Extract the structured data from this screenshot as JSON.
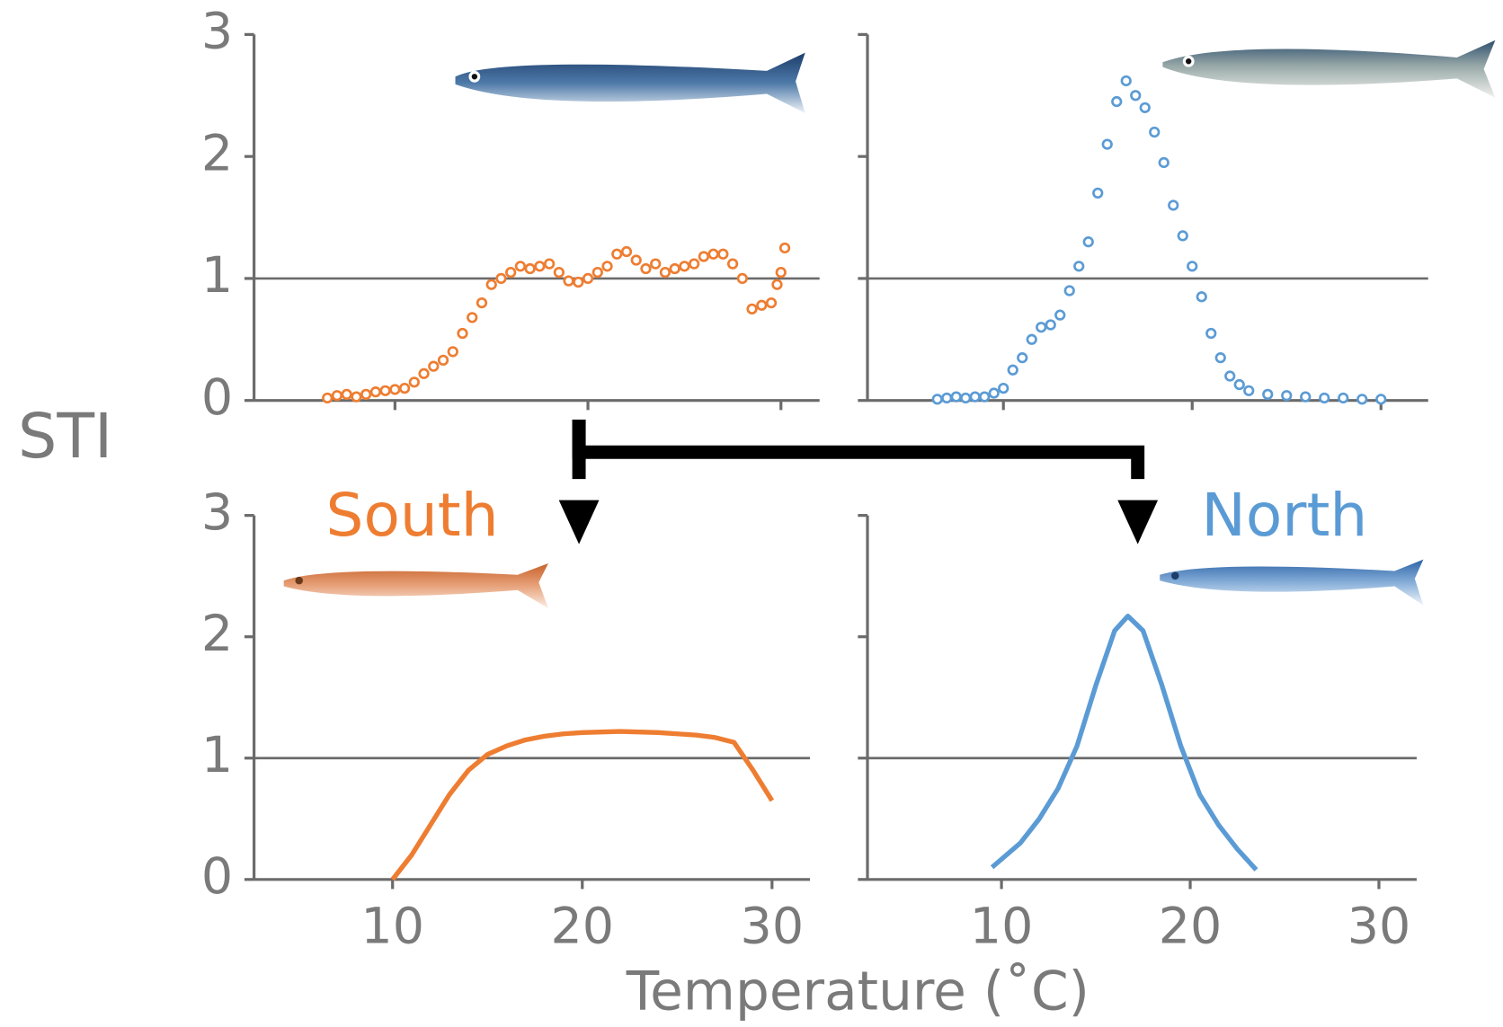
{
  "chart_data": [
    {
      "type": "scatter",
      "ylabel": "STI",
      "xlabel": "Temperature (˚C)",
      "color": "#ee7d31",
      "x": [
        6.5,
        7,
        7.5,
        8,
        8.5,
        9,
        9.5,
        10,
        10.5,
        11,
        11.5,
        12,
        12.5,
        13,
        13.5,
        14,
        14.5,
        15,
        15.5,
        16,
        16.5,
        17,
        17.5,
        18,
        18.5,
        19,
        19.5,
        20,
        20.5,
        21,
        21.5,
        22,
        22.5,
        23,
        23.5,
        24,
        24.5,
        25,
        25.5,
        26,
        26.5,
        27,
        27.5,
        28,
        28.5,
        29,
        29.5,
        29.8,
        30,
        30.2
      ],
      "values": [
        0.02,
        0.04,
        0.05,
        0.03,
        0.05,
        0.07,
        0.08,
        0.09,
        0.1,
        0.15,
        0.22,
        0.28,
        0.33,
        0.4,
        0.55,
        0.68,
        0.8,
        0.95,
        1.0,
        1.05,
        1.1,
        1.08,
        1.1,
        1.12,
        1.05,
        0.98,
        0.97,
        1.0,
        1.05,
        1.1,
        1.2,
        1.22,
        1.15,
        1.08,
        1.12,
        1.05,
        1.08,
        1.1,
        1.12,
        1.18,
        1.2,
        1.2,
        1.12,
        1.0,
        0.75,
        0.78,
        0.8,
        0.95,
        1.05,
        1.25
      ],
      "xlim": [
        2.7,
        32
      ],
      "ylim": [
        0,
        3
      ],
      "xticks": [
        10,
        20,
        30
      ],
      "yticks": [
        0,
        1,
        2,
        3
      ],
      "reference_line": 1,
      "xtick_labels": false,
      "ytick_labels": true
    },
    {
      "type": "scatter",
      "color": "#5b9bd5",
      "x": [
        6.5,
        7,
        7.5,
        8,
        8.5,
        9,
        9.5,
        10,
        10.5,
        11,
        11.5,
        12,
        12.5,
        13,
        13.5,
        14,
        14.5,
        15,
        15.5,
        16,
        16.5,
        17,
        17.5,
        18,
        18.5,
        19,
        19.5,
        20,
        20.5,
        21,
        21.5,
        22,
        22.5,
        23,
        24,
        25,
        26,
        27,
        28,
        29,
        30
      ],
      "values": [
        0.01,
        0.02,
        0.03,
        0.02,
        0.03,
        0.03,
        0.06,
        0.1,
        0.25,
        0.35,
        0.5,
        0.6,
        0.62,
        0.7,
        0.9,
        1.1,
        1.3,
        1.7,
        2.1,
        2.45,
        2.62,
        2.5,
        2.4,
        2.2,
        1.95,
        1.6,
        1.35,
        1.1,
        0.85,
        0.55,
        0.35,
        0.2,
        0.13,
        0.08,
        0.05,
        0.04,
        0.03,
        0.02,
        0.02,
        0.01,
        0.01
      ],
      "xlim": [
        2.8,
        32.5
      ],
      "ylim": [
        0,
        3
      ],
      "xticks": [
        10,
        20,
        30
      ],
      "yticks": [
        0,
        1,
        2,
        3
      ],
      "reference_line": 1,
      "xtick_labels": false,
      "ytick_labels": false
    },
    {
      "type": "line",
      "title": "South",
      "color": "#ee7d31",
      "x": [
        10,
        11,
        12,
        13,
        14,
        15,
        16,
        17,
        18,
        19,
        20,
        22,
        24,
        26,
        27,
        28,
        29,
        30
      ],
      "values": [
        0.0,
        0.2,
        0.45,
        0.7,
        0.9,
        1.03,
        1.1,
        1.15,
        1.18,
        1.2,
        1.21,
        1.22,
        1.21,
        1.19,
        1.17,
        1.13,
        0.9,
        0.65
      ],
      "xlim": [
        2.7,
        32
      ],
      "ylim": [
        0,
        3
      ],
      "xticks": [
        10,
        20,
        30
      ],
      "yticks": [
        0,
        1,
        2,
        3
      ],
      "reference_line": 1,
      "xtick_labels": true,
      "ytick_labels": true
    },
    {
      "type": "line",
      "title": "North",
      "color": "#5b9bd5",
      "x": [
        9.5,
        11,
        12,
        13,
        14,
        15,
        16,
        16.7,
        17.5,
        18.5,
        19.5,
        20.5,
        21.5,
        22.5,
        23.5
      ],
      "values": [
        0.1,
        0.3,
        0.5,
        0.75,
        1.1,
        1.6,
        2.05,
        2.17,
        2.05,
        1.6,
        1.1,
        0.7,
        0.45,
        0.25,
        0.08
      ],
      "xlim": [
        2.9,
        32
      ],
      "ylim": [
        0,
        3
      ],
      "xticks": [
        10,
        20,
        30
      ],
      "yticks": [
        0,
        1,
        2,
        3
      ],
      "reference_line": 1,
      "xtick_labels": true,
      "ytick_labels": false
    }
  ]
}
